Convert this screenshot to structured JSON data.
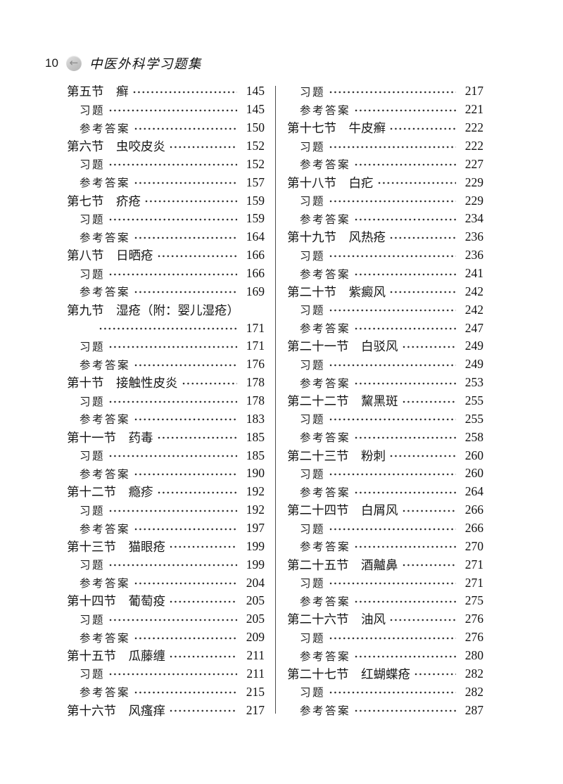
{
  "header": {
    "page_number": "10",
    "back_icon": "left-arrow",
    "back_glyph": "←",
    "book_title": "中医外科学习题集"
  },
  "toc": {
    "left_column": [
      {
        "label": "第五节　癣",
        "page": "145",
        "type": "section"
      },
      {
        "label": "习题",
        "page": "145",
        "type": "sub"
      },
      {
        "label": "参考答案",
        "page": "150",
        "type": "sub"
      },
      {
        "label": "第六节　虫咬皮炎",
        "page": "152",
        "type": "section"
      },
      {
        "label": "习题",
        "page": "152",
        "type": "sub"
      },
      {
        "label": "参考答案",
        "page": "157",
        "type": "sub"
      },
      {
        "label": "第七节　疥疮",
        "page": "159",
        "type": "section"
      },
      {
        "label": "习题",
        "page": "159",
        "type": "sub"
      },
      {
        "label": "参考答案",
        "page": "164",
        "type": "sub"
      },
      {
        "label": "第八节　日晒疮",
        "page": "166",
        "type": "section"
      },
      {
        "label": "习题",
        "page": "166",
        "type": "sub"
      },
      {
        "label": "参考答案",
        "page": "169",
        "type": "sub"
      },
      {
        "label": "第九节　湿疮（附：婴儿湿疮）",
        "page": "",
        "type": "section-nopage"
      },
      {
        "label": "",
        "page": "171",
        "type": "continuation"
      },
      {
        "label": "习题",
        "page": "171",
        "type": "sub"
      },
      {
        "label": "参考答案",
        "page": "176",
        "type": "sub"
      },
      {
        "label": "第十节　接触性皮炎",
        "page": "178",
        "type": "section"
      },
      {
        "label": "习题",
        "page": "178",
        "type": "sub"
      },
      {
        "label": "参考答案",
        "page": "183",
        "type": "sub"
      },
      {
        "label": "第十一节　药毒",
        "page": "185",
        "type": "section"
      },
      {
        "label": "习题",
        "page": "185",
        "type": "sub"
      },
      {
        "label": "参考答案",
        "page": "190",
        "type": "sub"
      },
      {
        "label": "第十二节　瘾疹",
        "page": "192",
        "type": "section"
      },
      {
        "label": "习题",
        "page": "192",
        "type": "sub"
      },
      {
        "label": "参考答案",
        "page": "197",
        "type": "sub"
      },
      {
        "label": "第十三节　猫眼疮",
        "page": "199",
        "type": "section"
      },
      {
        "label": "习题",
        "page": "199",
        "type": "sub"
      },
      {
        "label": "参考答案",
        "page": "204",
        "type": "sub"
      },
      {
        "label": "第十四节　葡萄疫",
        "page": "205",
        "type": "section"
      },
      {
        "label": "习题",
        "page": "205",
        "type": "sub"
      },
      {
        "label": "参考答案",
        "page": "209",
        "type": "sub"
      },
      {
        "label": "第十五节　瓜藤缠",
        "page": "211",
        "type": "section"
      },
      {
        "label": "习题",
        "page": "211",
        "type": "sub"
      },
      {
        "label": "参考答案",
        "page": "215",
        "type": "sub"
      },
      {
        "label": "第十六节　风瘙痒",
        "page": "217",
        "type": "section"
      }
    ],
    "right_column": [
      {
        "label": "习题",
        "page": "217",
        "type": "sub"
      },
      {
        "label": "参考答案",
        "page": "221",
        "type": "sub"
      },
      {
        "label": "第十七节　牛皮癣",
        "page": "222",
        "type": "section"
      },
      {
        "label": "习题",
        "page": "222",
        "type": "sub"
      },
      {
        "label": "参考答案",
        "page": "227",
        "type": "sub"
      },
      {
        "label": "第十八节　白疕",
        "page": "229",
        "type": "section"
      },
      {
        "label": "习题",
        "page": "229",
        "type": "sub"
      },
      {
        "label": "参考答案",
        "page": "234",
        "type": "sub"
      },
      {
        "label": "第十九节　风热疮",
        "page": "236",
        "type": "section"
      },
      {
        "label": "习题",
        "page": "236",
        "type": "sub"
      },
      {
        "label": "参考答案",
        "page": "241",
        "type": "sub"
      },
      {
        "label": "第二十节　紫癜风",
        "page": "242",
        "type": "section"
      },
      {
        "label": "习题",
        "page": "242",
        "type": "sub"
      },
      {
        "label": "参考答案",
        "page": "247",
        "type": "sub"
      },
      {
        "label": "第二十一节　白驳风",
        "page": "249",
        "type": "section"
      },
      {
        "label": "习题",
        "page": "249",
        "type": "sub"
      },
      {
        "label": "参考答案",
        "page": "253",
        "type": "sub"
      },
      {
        "label": "第二十二节　黧黑斑",
        "page": "255",
        "type": "section"
      },
      {
        "label": "习题",
        "page": "255",
        "type": "sub"
      },
      {
        "label": "参考答案",
        "page": "258",
        "type": "sub"
      },
      {
        "label": "第二十三节　粉刺",
        "page": "260",
        "type": "section"
      },
      {
        "label": "习题",
        "page": "260",
        "type": "sub"
      },
      {
        "label": "参考答案",
        "page": "264",
        "type": "sub"
      },
      {
        "label": "第二十四节　白屑风",
        "page": "266",
        "type": "section"
      },
      {
        "label": "习题",
        "page": "266",
        "type": "sub"
      },
      {
        "label": "参考答案",
        "page": "270",
        "type": "sub"
      },
      {
        "label": "第二十五节　酒齇鼻",
        "page": "271",
        "type": "section"
      },
      {
        "label": "习题",
        "page": "271",
        "type": "sub"
      },
      {
        "label": "参考答案",
        "page": "275",
        "type": "sub"
      },
      {
        "label": "第二十六节　油风",
        "page": "276",
        "type": "section"
      },
      {
        "label": "习题",
        "page": "276",
        "type": "sub"
      },
      {
        "label": "参考答案",
        "page": "280",
        "type": "sub"
      },
      {
        "label": "第二十七节　红蝴蝶疮",
        "page": "282",
        "type": "section"
      },
      {
        "label": "习题",
        "page": "282",
        "type": "sub"
      },
      {
        "label": "参考答案",
        "page": "287",
        "type": "sub"
      }
    ]
  }
}
